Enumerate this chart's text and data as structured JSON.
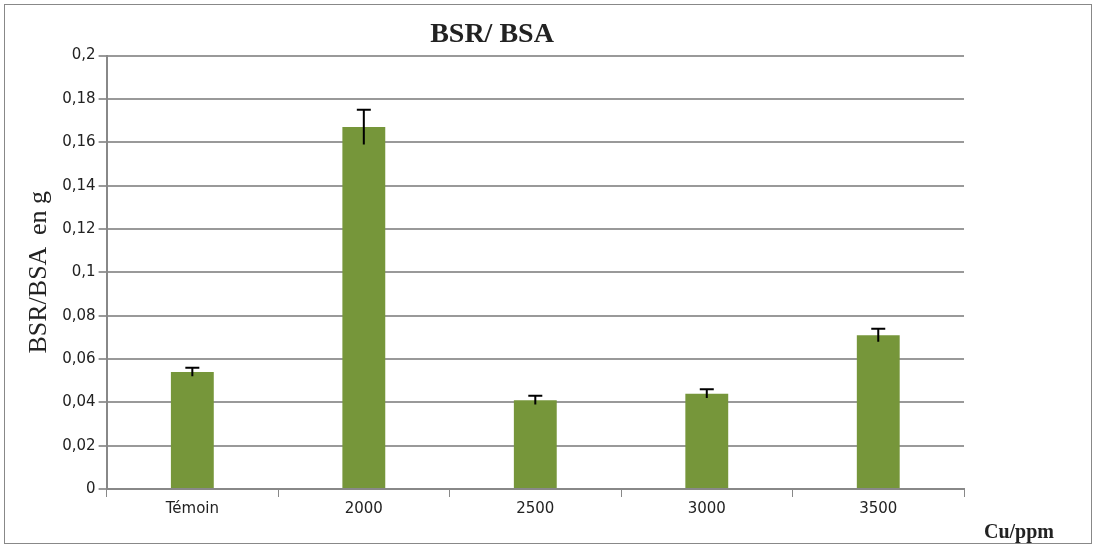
{
  "chart_data": {
    "type": "bar",
    "title": "BSR/ BSA",
    "ylabel": "BSR/BSA  en g",
    "xlabel": "Cu/ppm",
    "categories": [
      "Témoin",
      "2000",
      "2500",
      "3000",
      "3500"
    ],
    "values": [
      0.054,
      0.167,
      0.041,
      0.044,
      0.071
    ],
    "errors": [
      0.002,
      0.008,
      0.002,
      0.002,
      0.003
    ],
    "color": "#76963a",
    "ylim": [
      0,
      0.2
    ],
    "yticks": [
      {
        "value": 0,
        "label": "0"
      },
      {
        "value": 0.02,
        "label": "0,02"
      },
      {
        "value": 0.04,
        "label": "0,04"
      },
      {
        "value": 0.06,
        "label": "0,06"
      },
      {
        "value": 0.08,
        "label": "0,08"
      },
      {
        "value": 0.1,
        "label": "0,1"
      },
      {
        "value": 0.12,
        "label": "0,12"
      },
      {
        "value": 0.14,
        "label": "0,14"
      },
      {
        "value": 0.16,
        "label": "0,16"
      },
      {
        "value": 0.18,
        "label": "0,18"
      },
      {
        "value": 0.2,
        "label": "0,2"
      }
    ],
    "grid": "y",
    "legend": false
  }
}
